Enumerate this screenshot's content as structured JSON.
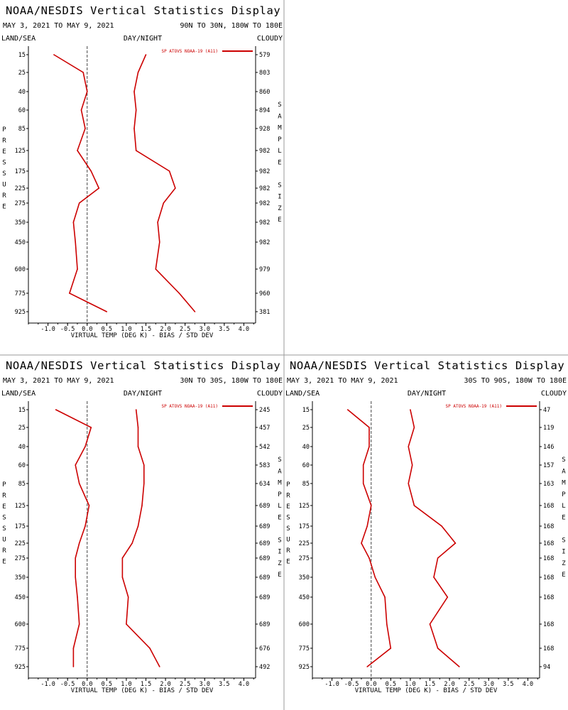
{
  "header": {
    "title": "NOAA/NESDIS Vertical Statistics Display",
    "date_range": "MAY 3, 2021 TO MAY 9, 2021",
    "land_sea": "LAND/SEA",
    "day_night": "DAY/NIGHT",
    "cloudy": "CLOUDY"
  },
  "labels": {
    "legend": "SP ATOVS NOAA-19 (A11)",
    "xlabel": "VIRTUAL TEMP (DEG K) - BIAS / STD DEV",
    "left_side": "PRESSURE",
    "right_side": "SAMPLE SIZE"
  },
  "colors": {
    "series": "#cc0000",
    "zero_line": "#444444",
    "divider": "#999999"
  },
  "chart_data": [
    {
      "type": "line",
      "region": "90N TO 30N, 180W TO 180E",
      "pressure": [
        15,
        25,
        40,
        60,
        85,
        125,
        175,
        225,
        275,
        350,
        450,
        600,
        775,
        925
      ],
      "sample_size": [
        "579",
        "803",
        "860",
        "894",
        "928",
        "982",
        "982",
        "982",
        "982",
        "982",
        "982",
        "979",
        "960",
        "381"
      ],
      "xticks": [
        "-1.0",
        "-0.5",
        "0.0",
        "0.5",
        "1.0",
        "1.5",
        "2.0",
        "2.5",
        "3.0",
        "3.5",
        "4.0"
      ],
      "xlim": [
        -1.5,
        4.3
      ],
      "series": [
        {
          "values": [
            -0.85,
            -0.1,
            0.0,
            -0.15,
            -0.05,
            -0.25,
            0.1,
            0.3,
            -0.2,
            -0.35,
            -0.3,
            -0.25,
            -0.45,
            0.5
          ]
        },
        {
          "values": [
            1.5,
            1.3,
            1.2,
            1.25,
            1.2,
            1.25,
            2.1,
            2.25,
            1.95,
            1.8,
            1.85,
            1.75,
            2.35,
            2.75
          ]
        }
      ]
    },
    {
      "type": "line",
      "region": "30N TO 30S, 180W TO 180E",
      "pressure": [
        15,
        25,
        40,
        60,
        85,
        125,
        175,
        225,
        275,
        350,
        450,
        600,
        775,
        925
      ],
      "sample_size": [
        "245",
        "457",
        "542",
        "583",
        "634",
        "689",
        "689",
        "689",
        "689",
        "689",
        "689",
        "689",
        "676",
        "492"
      ],
      "xticks": [
        "-1.0",
        "-0.5",
        "0.0",
        "0.5",
        "1.0",
        "1.5",
        "2.0",
        "2.5",
        "3.0",
        "3.5",
        "4.0"
      ],
      "xlim": [
        -1.5,
        4.3
      ],
      "series": [
        {
          "values": [
            -0.8,
            0.1,
            -0.05,
            -0.3,
            -0.2,
            0.05,
            -0.05,
            -0.2,
            -0.3,
            -0.3,
            -0.25,
            -0.2,
            -0.35,
            -0.35
          ]
        },
        {
          "values": [
            1.25,
            1.3,
            1.3,
            1.45,
            1.45,
            1.4,
            1.3,
            1.15,
            0.9,
            0.9,
            1.05,
            1.0,
            1.6,
            1.85
          ]
        }
      ]
    },
    {
      "type": "line",
      "region": "30S TO 90S, 180W TO 180E",
      "pressure": [
        15,
        25,
        40,
        60,
        85,
        125,
        175,
        225,
        275,
        350,
        450,
        600,
        775,
        925
      ],
      "sample_size": [
        "47",
        "119",
        "146",
        "157",
        "163",
        "168",
        "168",
        "168",
        "168",
        "168",
        "168",
        "168",
        "168",
        "94"
      ],
      "xticks": [
        "-1.0",
        "-0.5",
        "0.0",
        "0.5",
        "1.0",
        "1.5",
        "2.0",
        "2.5",
        "3.0",
        "3.5",
        "4.0"
      ],
      "xlim": [
        -1.5,
        4.3
      ],
      "series": [
        {
          "values": [
            -0.6,
            -0.05,
            -0.05,
            -0.2,
            -0.2,
            0.0,
            -0.1,
            -0.25,
            -0.05,
            0.1,
            0.35,
            0.4,
            0.5,
            -0.1
          ]
        },
        {
          "values": [
            1.0,
            1.1,
            0.95,
            1.05,
            0.95,
            1.1,
            1.8,
            2.15,
            1.7,
            1.6,
            1.95,
            1.5,
            1.7,
            2.25
          ]
        }
      ]
    }
  ]
}
